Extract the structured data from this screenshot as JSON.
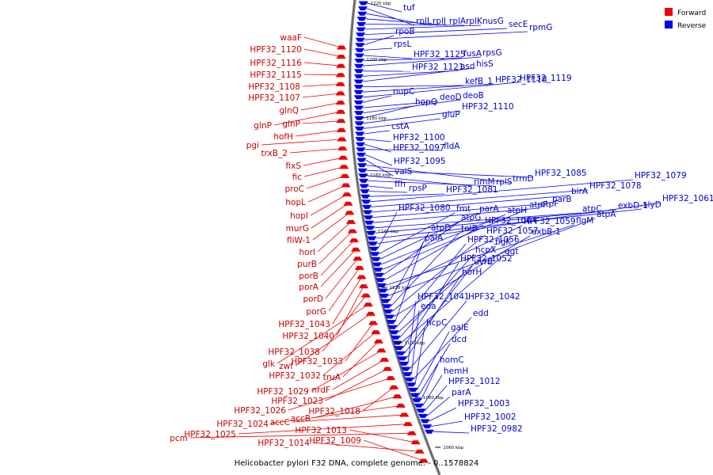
{
  "caption": "Helicobacter pylori F32 DNA, complete genome. - 0..1578824",
  "legend": {
    "forward_label": "Forward",
    "reverse_label": "Reverse",
    "forward_color": "#ee0000",
    "reverse_color": "#0000ee"
  },
  "ticks": [
    "1220 kbp",
    "1200 kbp",
    "1180 kbp",
    "1160 kbp",
    "1140 kbp",
    "1120 kbp",
    "1100 kbp",
    "1080 kbp",
    "1060 kbp"
  ],
  "forward_genes": [
    "waaF",
    "HPF32_1120",
    "HPF32_1116",
    "HPF32_1115",
    "HPF32_1108",
    "HPF32_1107",
    "glnQ",
    "glnP",
    "glnP",
    "hofH",
    "pgi",
    "trxB_2",
    "fixS",
    "fic",
    "proC",
    "hopL",
    "hopI",
    "murG",
    "fliW-1",
    "horI",
    "purB",
    "porB",
    "porA",
    "porD",
    "porG",
    "HPF32_1043",
    "HPF32_1040",
    "HPF32_1038",
    "glk",
    "zwf",
    "HPF32_1033",
    "HPF32_1032",
    "truA",
    "HPF32_1029",
    "nrdF",
    "HPF32_1023",
    "HPF32_1026",
    "HPF32_1018",
    "accB",
    "HPF32_1024",
    "accC",
    "HPF32_1025",
    "pcm",
    "HPF32_1013",
    "HPF32_1014",
    "HPF32_1009"
  ],
  "reverse_genes": [
    "tuf",
    "rplL",
    "rplJ",
    "rplA",
    "rplK",
    "nusG",
    "secE",
    "rpmG",
    "rpoB",
    "rpsL",
    "HPF32_1125",
    "fusA",
    "rpsG",
    "HPF32_1121",
    "asd",
    "hisS",
    "kefB_1",
    "HPF32_1118",
    "HPF32_1119",
    "nupC",
    "deoD",
    "deoB",
    "hopQ",
    "HPF32_1110",
    "gluP",
    "cstA",
    "HPF32_1100",
    "HPF32_1097",
    "fldA",
    "HPF32_1095",
    "valS",
    "trmD",
    "HPF32_1085",
    "rimM",
    "rplS",
    "ffh",
    "rpsP",
    "HPF32_1081",
    "HPF32_1079",
    "HPF32_1078",
    "birA",
    "parB",
    "atpF",
    "atpC",
    "exbD-1",
    "slyD",
    "HPF32_1061",
    "HPF32_1080",
    "fmt",
    "parA",
    "atpH",
    "atpF",
    "atpG",
    "HPF32_1064",
    "flgM",
    "HPF32_1059",
    "atpA",
    "atpD",
    "tolB",
    "HPF32_1057",
    "exbB-1",
    "palA",
    "HPF32_1056",
    "flgK",
    "hcpX",
    "ggt",
    "HPF32_1052",
    "uvrB",
    "horH",
    "HPF32_1041",
    "HPF32_1042",
    "eda",
    "edd",
    "hcpC",
    "galE",
    "dcd",
    "homC",
    "hemH",
    "HPF32_1012",
    "parA",
    "HPF32_1003",
    "HPF32_1002",
    "HPF32_0982"
  ]
}
